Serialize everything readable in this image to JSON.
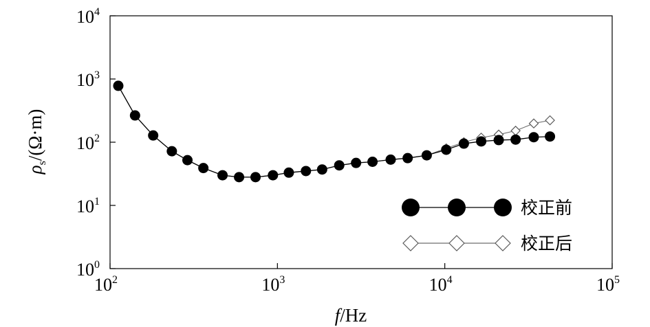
{
  "chart_data": {
    "type": "line",
    "x_scale": "log",
    "y_scale": "log",
    "xlim": [
      100,
      100000
    ],
    "ylim": [
      1,
      10000
    ],
    "xlabel_italic": "f",
    "xlabel_unit": "/Hz",
    "ylabel_symbol": "ρ",
    "ylabel_subscript": "s",
    "ylabel_unit": "/(Ω·m)",
    "x_ticks": [
      {
        "base": "10",
        "exp": "2",
        "value": 100
      },
      {
        "base": "10",
        "exp": "3",
        "value": 1000
      },
      {
        "base": "10",
        "exp": "4",
        "value": 10000
      },
      {
        "base": "10",
        "exp": "5",
        "value": 100000
      }
    ],
    "y_ticks": [
      {
        "base": "10",
        "exp": "0",
        "value": 1
      },
      {
        "base": "10",
        "exp": "1",
        "value": 10
      },
      {
        "base": "10",
        "exp": "2",
        "value": 100
      },
      {
        "base": "10",
        "exp": "3",
        "value": 1000
      },
      {
        "base": "10",
        "exp": "4",
        "value": 10000
      }
    ],
    "grid": false,
    "legend_position": "bottom-right",
    "x": [
      112,
      141,
      181,
      234,
      290,
      361,
      470,
      590,
      740,
      940,
      1170,
      1480,
      1850,
      2340,
      2950,
      3700,
      4750,
      6000,
      7800,
      10200,
      13000,
      16500,
      21000,
      26500,
      34000,
      42500
    ],
    "series": [
      {
        "name": "校正前",
        "marker": "filled-circle",
        "color": "#000000",
        "values": [
          780,
          265,
          128,
          72,
          52,
          39,
          30,
          28,
          28,
          30,
          33,
          35,
          37,
          43,
          47,
          49,
          53,
          56,
          62,
          76,
          95,
          103,
          108,
          110,
          120,
          123
        ]
      },
      {
        "name": "校正后",
        "marker": "open-diamond",
        "color": "#6e6e6e",
        "values": [
          780,
          265,
          128,
          72,
          52,
          39,
          30,
          28,
          28,
          30,
          33,
          35,
          37,
          43,
          47,
          49,
          53,
          56,
          62,
          80,
          100,
          118,
          132,
          152,
          198,
          222
        ]
      }
    ]
  }
}
